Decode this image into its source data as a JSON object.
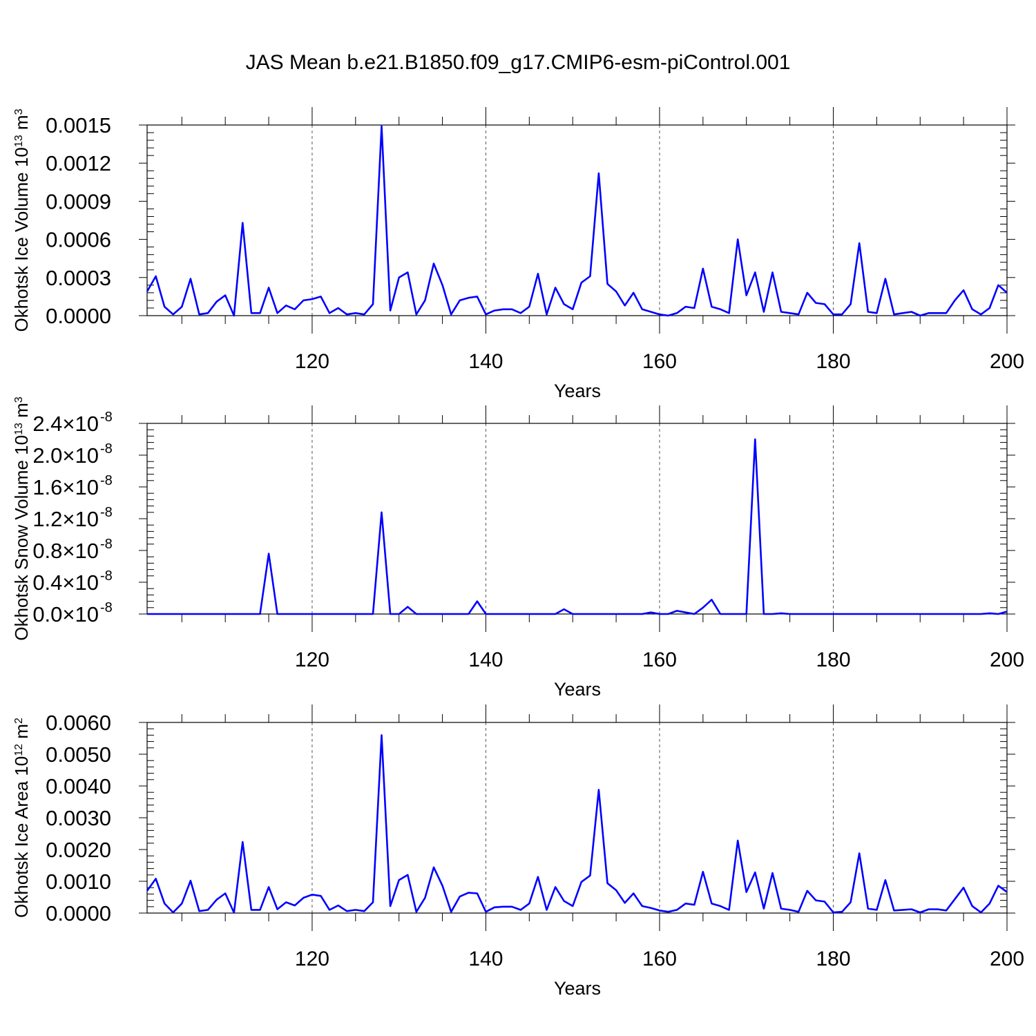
{
  "figure": {
    "title": "JAS Mean b.e21.B1850.f09_g17.CMIP6-esm-piControl.001"
  },
  "chart_data": [
    {
      "type": "line",
      "title": "",
      "xlabel": "Years",
      "ylabel": "Okhotsk Ice Volume 10",
      "ylabel_exp": "13",
      "ylabel_unit": "m",
      "ylabel_unit_exp": "3",
      "xlim": [
        101,
        200
      ],
      "ylim": [
        0,
        0.0015
      ],
      "x_ticks": [
        120,
        140,
        160,
        180,
        200
      ],
      "y_ticks": [
        0.0,
        0.0003,
        0.0006,
        0.0009,
        0.0012,
        0.0015
      ],
      "y_tick_labels": [
        "0.0000",
        "0.0003",
        "0.0006",
        "0.0009",
        "0.0012",
        "0.0015"
      ],
      "y_tick_exponent": "",
      "grid": "vertical dashed",
      "line_color": "#0000ff",
      "series": [
        {
          "values": [
            0.00019,
            0.00031,
            7e-05,
            1e-05,
            7e-05,
            0.00029,
            1e-05,
            2e-05,
            0.00011,
            0.00016,
            0.0,
            0.00073,
            2e-05,
            2e-05,
            0.00022,
            2e-05,
            8e-05,
            5e-05,
            0.00012,
            0.00013,
            0.00015,
            2e-05,
            6e-05,
            1e-05,
            2e-05,
            1e-05,
            9e-05,
            0.00149,
            4e-05,
            0.0003,
            0.00034,
            1e-05,
            0.00012,
            0.00041,
            0.00024,
            1e-05,
            0.00012,
            0.00014,
            0.00015,
            1e-05,
            4e-05,
            5e-05,
            5e-05,
            2e-05,
            7e-05,
            0.00033,
            1e-05,
            0.00022,
            9e-05,
            5e-05,
            0.00026,
            0.00031,
            0.00112,
            0.00025,
            0.00019,
            8e-05,
            0.00018,
            5e-05,
            3e-05,
            1e-05,
            0.0,
            2e-05,
            7e-05,
            6e-05,
            0.00037,
            7e-05,
            5e-05,
            2e-05,
            0.0006,
            0.00016,
            0.00034,
            3e-05,
            0.00034,
            3e-05,
            2e-05,
            1e-05,
            0.00018,
            0.0001,
            9e-05,
            1e-05,
            1e-05,
            9e-05,
            0.00057,
            3e-05,
            2e-05,
            0.00029,
            1e-05,
            2e-05,
            3e-05,
            0.0,
            2e-05,
            2e-05,
            2e-05,
            0.00012,
            0.0002,
            5e-05,
            1e-05,
            6e-05,
            0.00024,
            0.00018
          ]
        }
      ]
    },
    {
      "type": "line",
      "title": "",
      "xlabel": "Years",
      "ylabel": "Okhotsk Snow Volume 10",
      "ylabel_exp": "13",
      "ylabel_unit": "m",
      "ylabel_unit_exp": "3",
      "xlim": [
        101,
        200
      ],
      "ylim": [
        0,
        2.4e-08
      ],
      "x_ticks": [
        120,
        140,
        160,
        180,
        200
      ],
      "y_ticks": [
        0.0,
        4e-09,
        8e-09,
        1.2e-08,
        1.6e-08,
        2e-08,
        2.4e-08
      ],
      "y_tick_labels": [
        "0.0×10",
        "0.4×10",
        "0.8×10",
        "1.2×10",
        "1.6×10",
        "2.0×10",
        "2.4×10"
      ],
      "y_tick_exponent": "-8",
      "grid": "vertical dashed",
      "line_color": "#0000ff",
      "series": [
        {
          "values": [
            0,
            0,
            0,
            0,
            0,
            0,
            0,
            0,
            0,
            0,
            0,
            0,
            0,
            0,
            7.6e-09,
            0,
            0,
            0,
            0,
            0,
            0,
            0,
            0,
            0,
            0,
            0,
            0,
            1.28e-08,
            0,
            0,
            9e-10,
            0,
            0,
            0,
            0,
            0,
            0,
            0,
            1.6e-09,
            0,
            0,
            0,
            0,
            0,
            0,
            0,
            0,
            0,
            6e-10,
            0,
            0,
            0,
            0,
            0,
            0,
            0,
            0,
            0,
            2e-10,
            0,
            0,
            4e-10,
            2e-10,
            0,
            8e-10,
            1.8e-09,
            0,
            0,
            0,
            0,
            2.2e-08,
            0,
            0,
            1e-10,
            0,
            0,
            0,
            0,
            0,
            0,
            0,
            0,
            0,
            0,
            0,
            0,
            0,
            0,
            0,
            0,
            0,
            0,
            0,
            0,
            0,
            0,
            0,
            1e-10,
            0,
            3e-10
          ]
        }
      ]
    },
    {
      "type": "line",
      "title": "",
      "xlabel": "Years",
      "ylabel": "Okhotsk Ice Area 10",
      "ylabel_exp": "12",
      "ylabel_unit": "m",
      "ylabel_unit_exp": "2",
      "xlim": [
        101,
        200
      ],
      "ylim": [
        0,
        0.006
      ],
      "x_ticks": [
        120,
        140,
        160,
        180,
        200
      ],
      "y_ticks": [
        0.0,
        0.001,
        0.002,
        0.003,
        0.004,
        0.005,
        0.006
      ],
      "y_tick_labels": [
        "0.0000",
        "0.0010",
        "0.0020",
        "0.0030",
        "0.0040",
        "0.0050",
        "0.0060"
      ],
      "y_tick_exponent": "",
      "grid": "vertical dashed",
      "line_color": "#0000ff",
      "series": [
        {
          "values": [
            0.0007,
            0.00108,
            0.0003,
            2e-05,
            0.0003,
            0.00102,
            6e-05,
            0.0001,
            0.00042,
            0.00062,
            1e-05,
            0.00224,
            0.0001,
            0.0001,
            0.00082,
            0.00012,
            0.00034,
            0.00024,
            0.00048,
            0.00058,
            0.00054,
            0.0001,
            0.00024,
            6e-05,
            0.0001,
            6e-05,
            0.00034,
            0.0056,
            0.00022,
            0.00104,
            0.0012,
            4e-05,
            0.00048,
            0.00144,
            0.00086,
            4e-05,
            0.00052,
            0.00064,
            0.00062,
            4e-05,
            0.00018,
            0.0002,
            0.0002,
            0.0001,
            0.0003,
            0.00114,
            0.0001,
            0.00082,
            0.00038,
            0.00022,
            0.00098,
            0.00118,
            0.00388,
            0.00094,
            0.00072,
            0.00032,
            0.00062,
            0.00022,
            0.00016,
            8e-05,
            4e-05,
            0.0001,
            0.0003,
            0.00026,
            0.0013,
            0.0003,
            0.00022,
            0.0001,
            0.00228,
            0.00066,
            0.00128,
            0.00014,
            0.00126,
            0.00014,
            0.0001,
            4e-05,
            0.0007,
            0.0004,
            0.00036,
            2e-05,
            4e-05,
            0.00034,
            0.00188,
            0.00014,
            0.0001,
            0.00104,
            8e-05,
            0.0001,
            0.00012,
            2e-05,
            0.00012,
            0.00012,
            8e-05,
            0.00044,
            0.0008,
            0.00022,
            2e-05,
            0.0003,
            0.00086,
            0.00066
          ]
        }
      ]
    }
  ]
}
